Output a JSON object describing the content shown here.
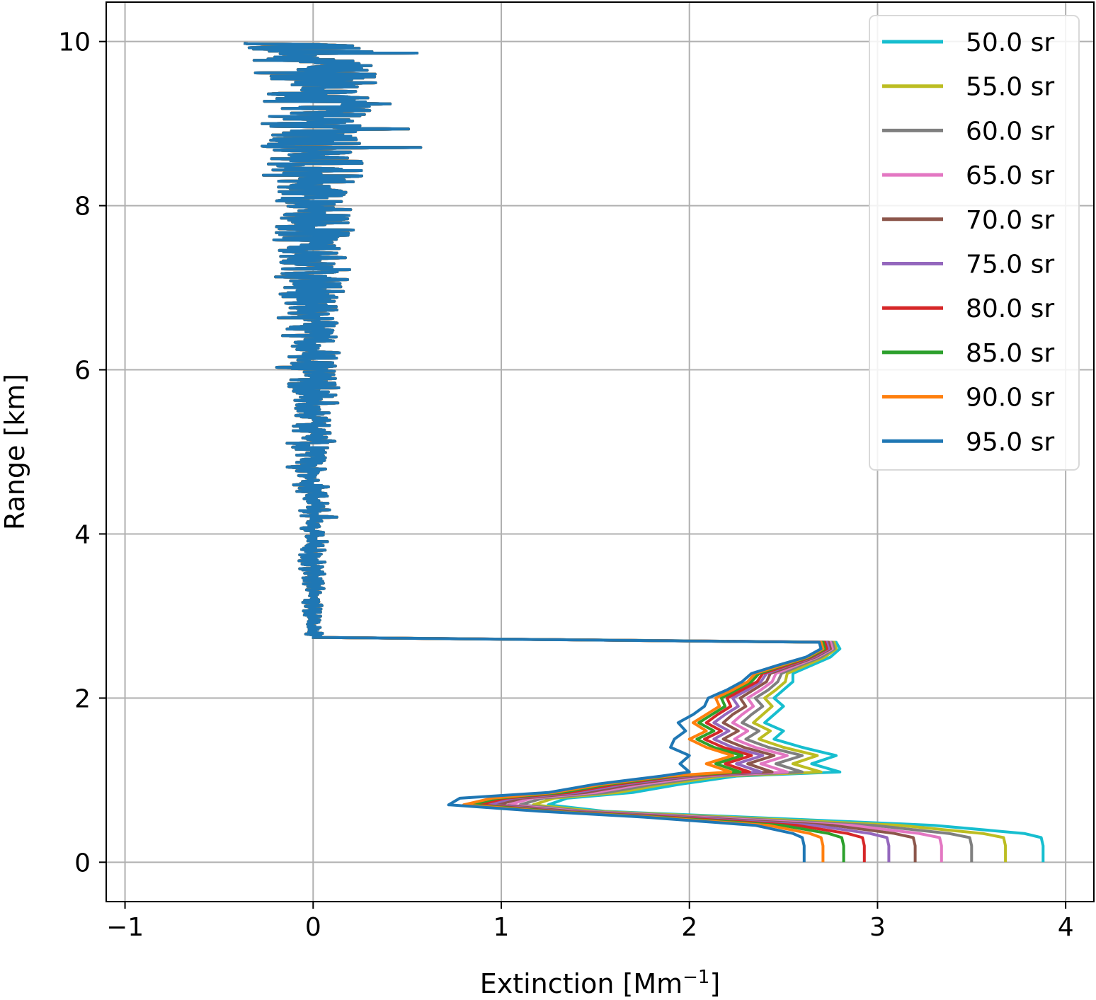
{
  "chart_data": {
    "type": "line",
    "xlabel": "Extinction [Mm",
    "xlabel_sup": "−1",
    "xlabel_end": "]",
    "ylabel": "Range [km]",
    "xlim": [
      -1.1,
      4.15
    ],
    "ylim": [
      -0.48,
      10.48
    ],
    "xticks": [
      -1,
      0,
      1,
      2,
      3,
      4
    ],
    "xtick_labels": [
      "−1",
      "0",
      "1",
      "2",
      "3",
      "4"
    ],
    "yticks": [
      0,
      2,
      4,
      6,
      8,
      10
    ],
    "ytick_labels": [
      "0",
      "2",
      "4",
      "6",
      "8",
      "10"
    ],
    "grid": true,
    "legend_position": "top-right",
    "upper_profile": {
      "range_start_km": 2.74,
      "range_end_km": 9.98,
      "x_min": -0.86,
      "x_max": 1.03,
      "note_visible_behavior": "noisy, common to all series"
    },
    "range_km": [
      0.0,
      0.1,
      0.2,
      0.3,
      0.35,
      0.45,
      0.55,
      0.62,
      0.7,
      0.78,
      0.85,
      0.95,
      1.05,
      1.1,
      1.2,
      1.3,
      1.4,
      1.5,
      1.6,
      1.7,
      1.8,
      1.9,
      2.0,
      2.1,
      2.2,
      2.3,
      2.4,
      2.5,
      2.6,
      2.68,
      2.74
    ],
    "series": [
      {
        "name": "50.0 sr",
        "color": "#17becf",
        "values": [
          3.88,
          3.88,
          3.88,
          3.87,
          3.78,
          3.3,
          2.3,
          1.55,
          1.25,
          1.35,
          1.7,
          1.95,
          2.25,
          2.8,
          2.65,
          2.78,
          2.6,
          2.45,
          2.5,
          2.4,
          2.45,
          2.5,
          2.45,
          2.5,
          2.55,
          2.55,
          2.65,
          2.75,
          2.8,
          2.78,
          0.0
        ]
      },
      {
        "name": "55.0 sr",
        "color": "#bcbd22",
        "values": [
          3.68,
          3.68,
          3.68,
          3.67,
          3.56,
          3.12,
          2.2,
          1.5,
          1.17,
          1.28,
          1.62,
          1.87,
          2.18,
          2.7,
          2.55,
          2.68,
          2.5,
          2.37,
          2.43,
          2.34,
          2.39,
          2.44,
          2.4,
          2.46,
          2.51,
          2.52,
          2.62,
          2.72,
          2.78,
          2.77,
          0.0
        ]
      },
      {
        "name": "60.0 sr",
        "color": "#7f7f7f",
        "values": [
          3.5,
          3.5,
          3.5,
          3.49,
          3.38,
          2.98,
          2.12,
          1.45,
          1.1,
          1.22,
          1.56,
          1.81,
          2.12,
          2.6,
          2.46,
          2.6,
          2.42,
          2.3,
          2.37,
          2.28,
          2.33,
          2.39,
          2.35,
          2.42,
          2.47,
          2.49,
          2.59,
          2.7,
          2.77,
          2.76,
          0.0
        ]
      },
      {
        "name": "65.0 sr",
        "color": "#e377c2",
        "values": [
          3.34,
          3.34,
          3.34,
          3.33,
          3.22,
          2.86,
          2.05,
          1.41,
          1.04,
          1.16,
          1.5,
          1.75,
          2.07,
          2.52,
          2.38,
          2.52,
          2.35,
          2.24,
          2.31,
          2.23,
          2.28,
          2.34,
          2.31,
          2.38,
          2.44,
          2.46,
          2.57,
          2.68,
          2.76,
          2.75,
          0.0
        ]
      },
      {
        "name": "70.0 sr",
        "color": "#8c564b",
        "values": [
          3.2,
          3.2,
          3.2,
          3.19,
          3.09,
          2.76,
          1.99,
          1.37,
          0.98,
          1.11,
          1.45,
          1.7,
          2.02,
          2.44,
          2.31,
          2.45,
          2.29,
          2.18,
          2.26,
          2.18,
          2.23,
          2.3,
          2.27,
          2.34,
          2.41,
          2.43,
          2.55,
          2.67,
          2.75,
          2.74,
          0.0
        ]
      },
      {
        "name": "75.0 sr",
        "color": "#9467bd",
        "values": [
          3.06,
          3.06,
          3.06,
          3.05,
          2.96,
          2.66,
          1.94,
          1.33,
          0.93,
          1.06,
          1.4,
          1.65,
          1.98,
          2.38,
          2.25,
          2.39,
          2.23,
          2.13,
          2.21,
          2.13,
          2.19,
          2.26,
          2.23,
          2.31,
          2.38,
          2.41,
          2.53,
          2.66,
          2.74,
          2.73,
          0.0
        ]
      },
      {
        "name": "80.0 sr",
        "color": "#d62728",
        "values": [
          2.93,
          2.93,
          2.93,
          2.92,
          2.84,
          2.57,
          1.89,
          1.3,
          0.88,
          1.02,
          1.36,
          1.61,
          1.94,
          2.32,
          2.19,
          2.33,
          2.18,
          2.08,
          2.17,
          2.09,
          2.15,
          2.22,
          2.2,
          2.28,
          2.36,
          2.39,
          2.52,
          2.65,
          2.73,
          2.72,
          0.0
        ]
      },
      {
        "name": "85.0 sr",
        "color": "#2ca02c",
        "values": [
          2.82,
          2.82,
          2.82,
          2.81,
          2.74,
          2.49,
          1.84,
          1.27,
          0.84,
          0.98,
          1.32,
          1.57,
          1.91,
          2.27,
          2.14,
          2.28,
          2.13,
          2.04,
          2.13,
          2.05,
          2.12,
          2.19,
          2.17,
          2.25,
          2.33,
          2.37,
          2.5,
          2.64,
          2.72,
          2.71,
          0.0
        ]
      },
      {
        "name": "90.0 sr",
        "color": "#ff7f0e",
        "values": [
          2.71,
          2.71,
          2.71,
          2.7,
          2.64,
          2.42,
          1.8,
          1.24,
          0.8,
          0.95,
          1.28,
          1.54,
          1.88,
          2.22,
          2.09,
          2.23,
          2.09,
          2.0,
          2.09,
          2.02,
          2.09,
          2.16,
          2.14,
          2.23,
          2.31,
          2.35,
          2.49,
          2.63,
          2.71,
          2.7,
          0.0
        ]
      },
      {
        "name": "95.0 sr",
        "color": "#1f77b4",
        "values": [
          2.61,
          2.61,
          2.61,
          2.6,
          2.55,
          2.35,
          1.76,
          1.21,
          0.72,
          0.78,
          1.25,
          1.5,
          1.85,
          2.0,
          1.95,
          2.0,
          1.9,
          1.92,
          1.98,
          1.94,
          2.02,
          2.08,
          2.1,
          2.2,
          2.28,
          2.33,
          2.47,
          2.62,
          2.7,
          2.69,
          0.0
        ]
      }
    ]
  }
}
